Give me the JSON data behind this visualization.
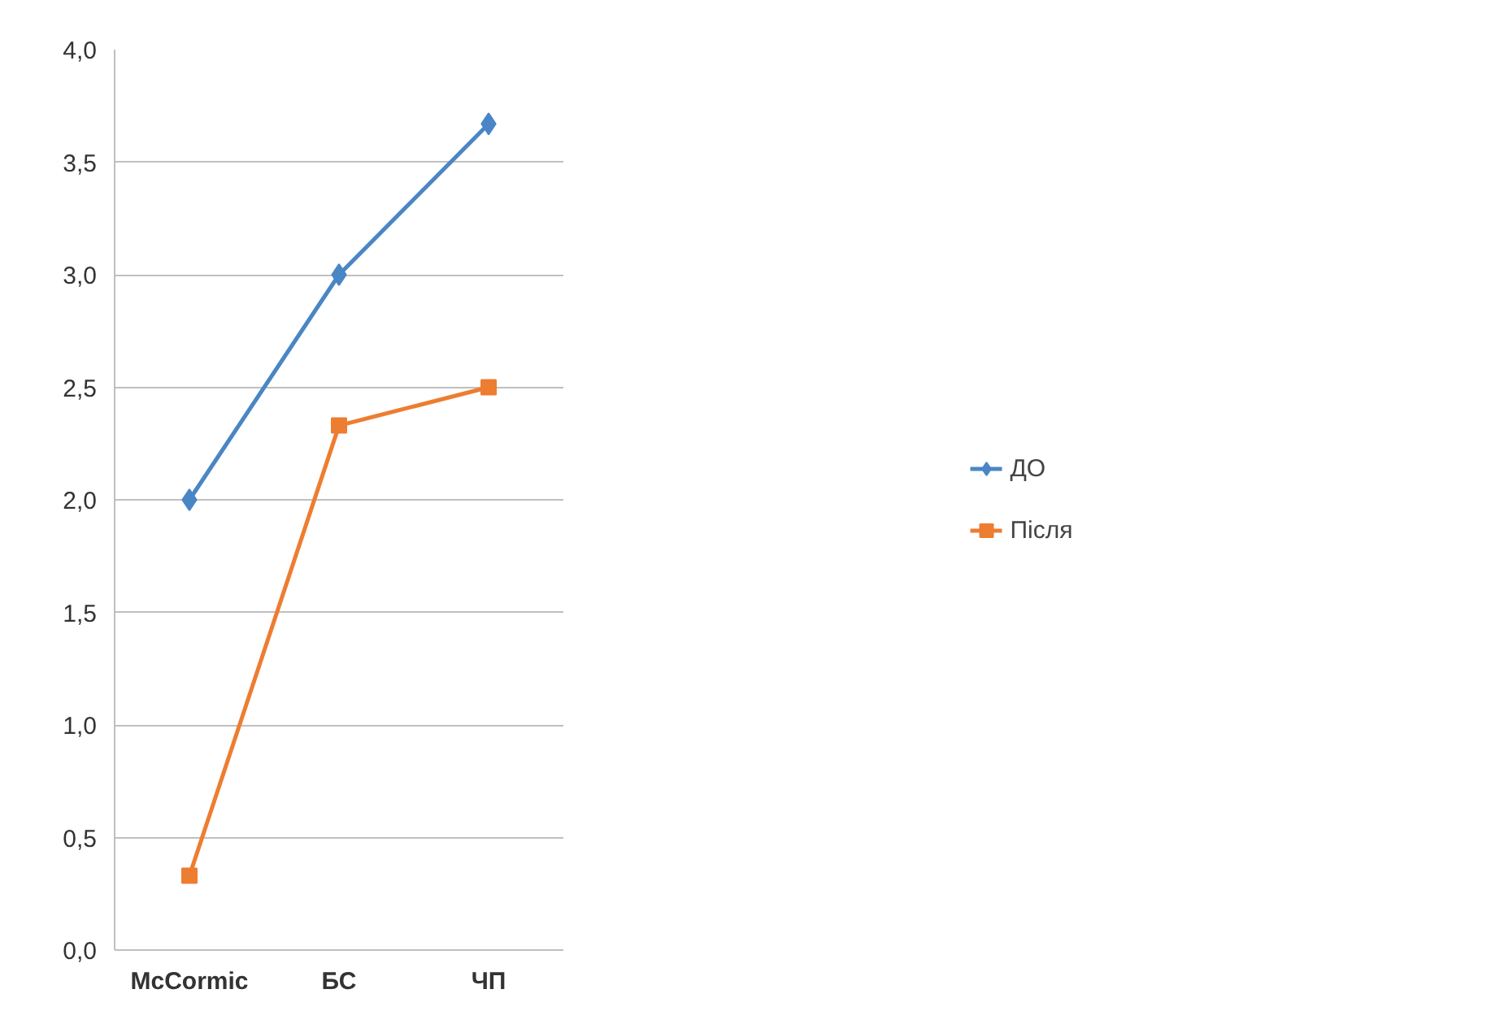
{
  "chart_data": {
    "type": "line",
    "categories": [
      "McCormic",
      "БС",
      "ЧП"
    ],
    "series": [
      {
        "name": "ДО",
        "color": "#4a86c5",
        "values": [
          2.0,
          3.0,
          3.67
        ],
        "marker": "diamond"
      },
      {
        "name": "Після",
        "color": "#ed7d31",
        "values": [
          0.33,
          2.33,
          2.5
        ],
        "marker": "square"
      }
    ],
    "ylim": [
      0,
      4
    ],
    "yticks": [
      {
        "value": 0,
        "label": "0,0"
      },
      {
        "value": 0.5,
        "label": "0,5"
      },
      {
        "value": 1,
        "label": "1,0"
      },
      {
        "value": 1.5,
        "label": "1,5"
      },
      {
        "value": 2,
        "label": "2,0"
      },
      {
        "value": 2.5,
        "label": "2,5"
      },
      {
        "value": 3,
        "label": "3,0"
      },
      {
        "value": 3.5,
        "label": "3,5"
      },
      {
        "value": 4,
        "label": "4,0"
      }
    ],
    "grid": "y",
    "legend": "right",
    "line_style": "solid"
  }
}
